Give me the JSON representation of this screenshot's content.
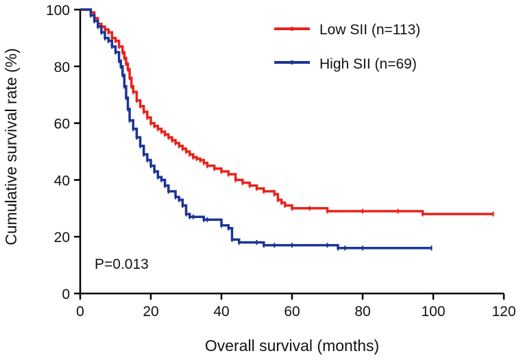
{
  "chart_data": {
    "type": "line",
    "xlabel": "Overall survival (months)",
    "ylabel": "Cumulative survival rate (%)",
    "xlim": [
      0,
      120
    ],
    "ylim": [
      0,
      100
    ],
    "xticks": [
      0,
      20,
      40,
      60,
      80,
      100,
      120
    ],
    "yticks": [
      0,
      20,
      40,
      60,
      80,
      100
    ],
    "grid": false,
    "legend_position": "top-right",
    "annotation": "P=0.013",
    "series": [
      {
        "name": "Low SII (n=113)",
        "color": "#e8221b",
        "step": true,
        "x": [
          0,
          3,
          4,
          5,
          6,
          7,
          8,
          9,
          10,
          11,
          12,
          12.5,
          13,
          13.5,
          14,
          14.5,
          15,
          16,
          17,
          18,
          19,
          20,
          21,
          22,
          23,
          24,
          25,
          26,
          27,
          28,
          29,
          30,
          31,
          32,
          33,
          34,
          35,
          36,
          38,
          40,
          42,
          44,
          46,
          48,
          50,
          52,
          55,
          56,
          57,
          58,
          60,
          65,
          70,
          80,
          90,
          97,
          117
        ],
        "y": [
          100,
          99,
          97,
          95,
          94,
          93,
          92,
          90,
          89,
          87,
          85,
          83,
          81,
          79,
          76,
          73,
          71,
          68,
          66,
          64,
          62,
          60,
          59,
          58,
          57,
          56,
          55,
          54,
          53,
          52,
          51,
          50,
          49,
          48,
          47.5,
          47,
          46,
          45,
          44,
          43,
          42,
          40,
          39,
          38,
          37,
          36,
          35,
          33,
          32,
          31,
          30,
          30,
          29,
          29,
          29,
          28,
          28
        ]
      },
      {
        "name": "High SII (n=69)",
        "color": "#1c3496",
        "step": true,
        "x": [
          0,
          3,
          4,
          5,
          6,
          7,
          8,
          9,
          10,
          11,
          11.5,
          12,
          12.5,
          13,
          13.5,
          14,
          15,
          16,
          17,
          18,
          19,
          20,
          21,
          22,
          23,
          24,
          25,
          27,
          28,
          29,
          30,
          31,
          32,
          35,
          36,
          40,
          42,
          43,
          45,
          50,
          52,
          55,
          60,
          70,
          73,
          75,
          80,
          99.5
        ],
        "y": [
          100,
          98,
          96,
          94,
          92,
          90,
          89,
          87,
          85,
          82,
          80,
          77,
          73,
          69,
          65,
          61,
          58,
          55,
          52,
          49,
          47,
          45,
          43,
          41,
          40,
          38,
          36,
          34,
          33,
          31,
          28,
          27,
          27,
          26,
          26,
          24,
          23,
          19,
          18,
          18,
          17,
          17,
          17,
          17,
          16,
          16,
          16,
          16
        ]
      }
    ]
  }
}
